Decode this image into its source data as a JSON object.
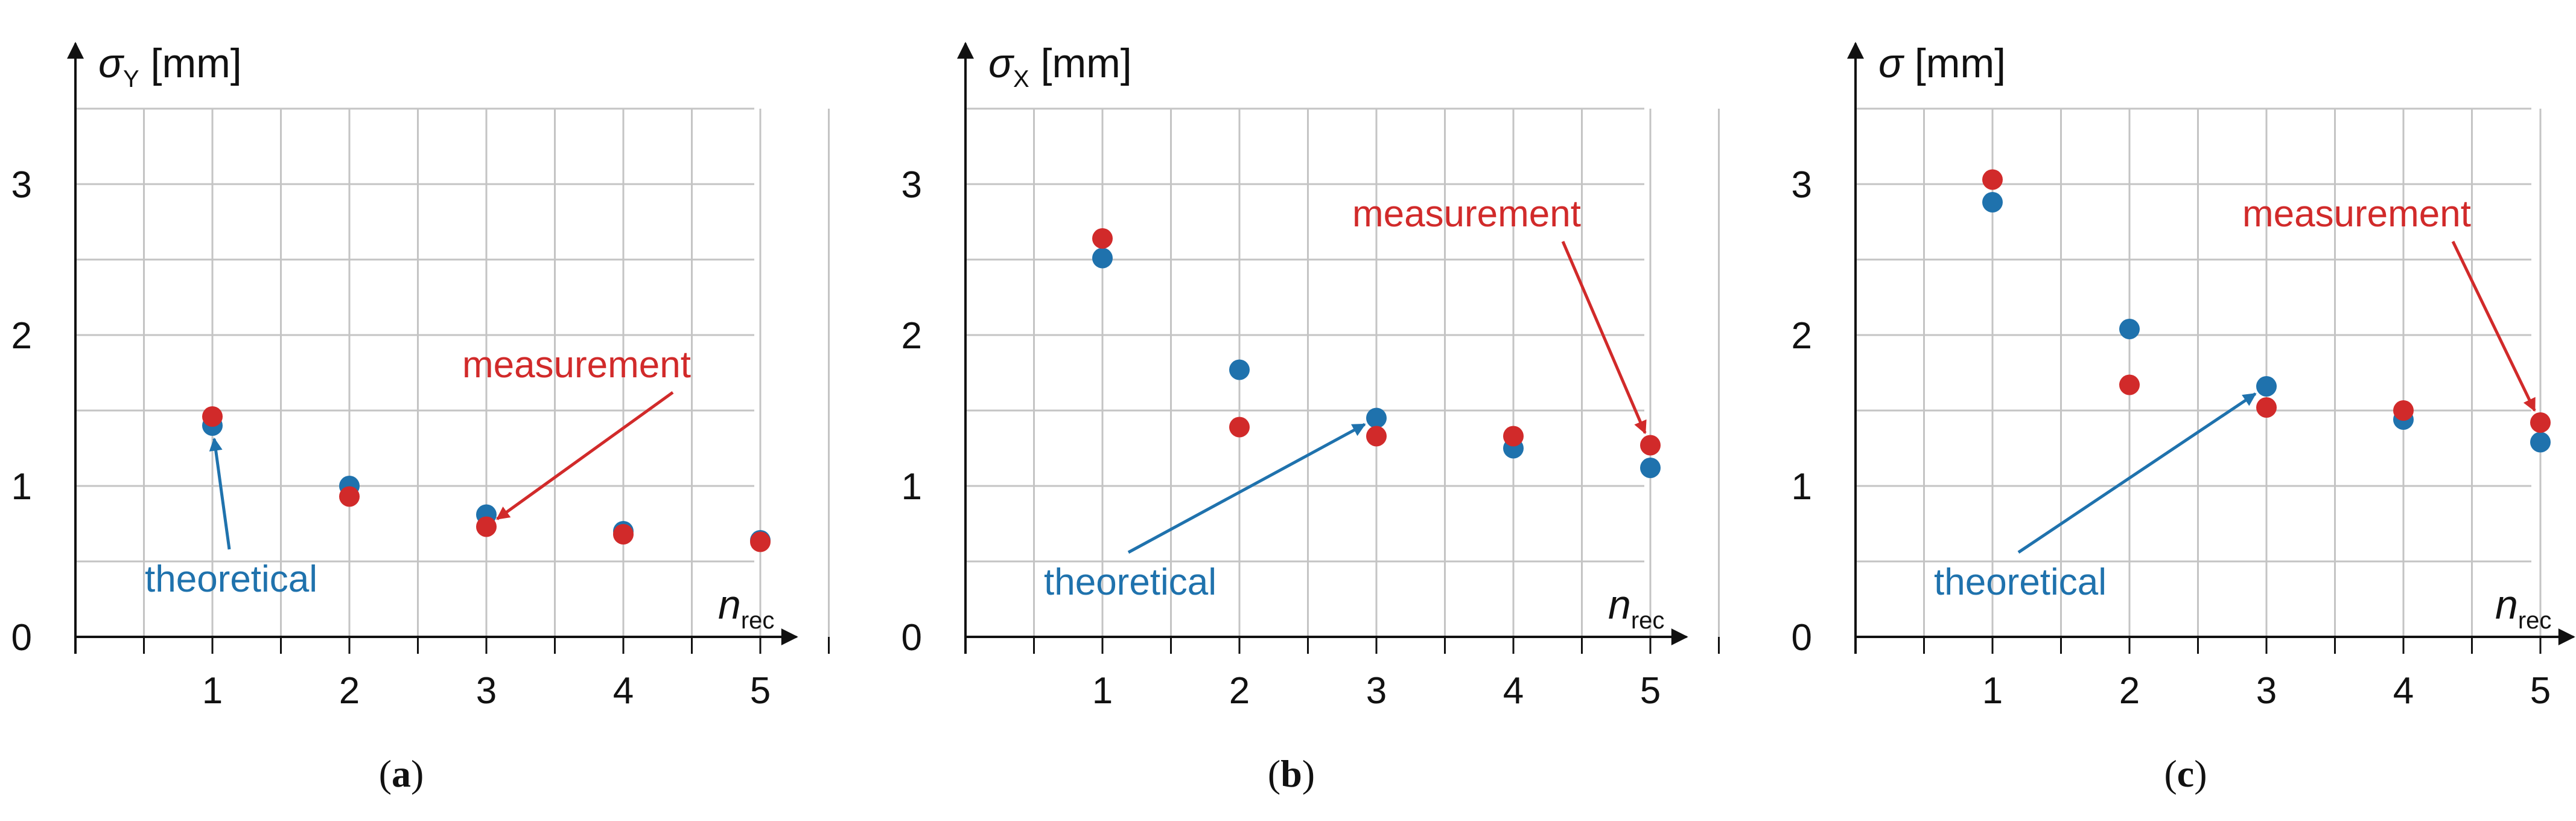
{
  "colors": {
    "theoretical": "#1f72ad",
    "measurement": "#d12a2a",
    "axis": "#111111",
    "grid": "#c4c4c4"
  },
  "chart_data": [
    {
      "panel": "a",
      "type": "scatter",
      "ylabel_symbol": "σ",
      "ylabel_sub": "Y",
      "ylabel_unit": "[mm]",
      "xlabel_symbol": "n",
      "xlabel_sub": "rec",
      "xlim": [
        0.5,
        5.5
      ],
      "ylim": [
        0,
        3.5
      ],
      "x_ticks": [
        "1",
        "2",
        "3",
        "4",
        "5"
      ],
      "y_ticks": [
        "0",
        "1",
        "2",
        "3"
      ],
      "grid": true,
      "series": [
        {
          "name": "theoretical",
          "x": [
            1,
            2,
            3,
            4,
            5
          ],
          "y": [
            1.4,
            1.0,
            0.81,
            0.7,
            0.64
          ]
        },
        {
          "name": "measurement",
          "x": [
            1,
            2,
            3,
            4,
            5
          ],
          "y": [
            1.46,
            0.93,
            0.73,
            0.68,
            0.63
          ]
        }
      ],
      "annotations": [
        {
          "text": "theoretical",
          "series": "theoretical",
          "points_to": [
            1,
            1.4
          ]
        },
        {
          "text": "measurement",
          "series": "measurement",
          "points_to": [
            3,
            0.73
          ]
        }
      ]
    },
    {
      "panel": "b",
      "type": "scatter",
      "ylabel_symbol": "σ",
      "ylabel_sub": "X",
      "ylabel_unit": "[mm]",
      "xlabel_symbol": "n",
      "xlabel_sub": "rec",
      "xlim": [
        0.5,
        5.5
      ],
      "ylim": [
        0,
        3.5
      ],
      "x_ticks": [
        "1",
        "2",
        "3",
        "4",
        "5"
      ],
      "y_ticks": [
        "0",
        "1",
        "2",
        "3"
      ],
      "grid": true,
      "series": [
        {
          "name": "theoretical",
          "x": [
            1,
            2,
            3,
            4,
            5
          ],
          "y": [
            2.51,
            1.77,
            1.45,
            1.25,
            1.12
          ]
        },
        {
          "name": "measurement",
          "x": [
            1,
            2,
            3,
            4,
            5
          ],
          "y": [
            2.64,
            1.39,
            1.33,
            1.33,
            1.27
          ]
        }
      ],
      "annotations": [
        {
          "text": "theoretical",
          "series": "theoretical",
          "points_to": [
            3,
            1.45
          ]
        },
        {
          "text": "measurement",
          "series": "measurement",
          "points_to": [
            5,
            1.27
          ]
        }
      ]
    },
    {
      "panel": "c",
      "type": "scatter",
      "ylabel_symbol": "σ",
      "ylabel_sub": "",
      "ylabel_unit": "[mm]",
      "xlabel_symbol": "n",
      "xlabel_sub": "rec",
      "xlim": [
        0.5,
        5.5
      ],
      "ylim": [
        0,
        3.5
      ],
      "x_ticks": [
        "1",
        "2",
        "3",
        "4",
        "5"
      ],
      "y_ticks": [
        "0",
        "1",
        "2",
        "3"
      ],
      "grid": true,
      "series": [
        {
          "name": "theoretical",
          "x": [
            1,
            2,
            3,
            4,
            5
          ],
          "y": [
            2.88,
            2.04,
            1.66,
            1.44,
            1.29
          ]
        },
        {
          "name": "measurement",
          "x": [
            1,
            2,
            3,
            4,
            5
          ],
          "y": [
            3.03,
            1.67,
            1.52,
            1.5,
            1.42
          ]
        }
      ],
      "annotations": [
        {
          "text": "theoretical",
          "series": "theoretical",
          "points_to": [
            3,
            1.66
          ]
        },
        {
          "text": "measurement",
          "series": "measurement",
          "points_to": [
            5,
            1.42
          ]
        }
      ]
    }
  ],
  "captions": [
    "(a)",
    "(b)",
    "(c)"
  ]
}
